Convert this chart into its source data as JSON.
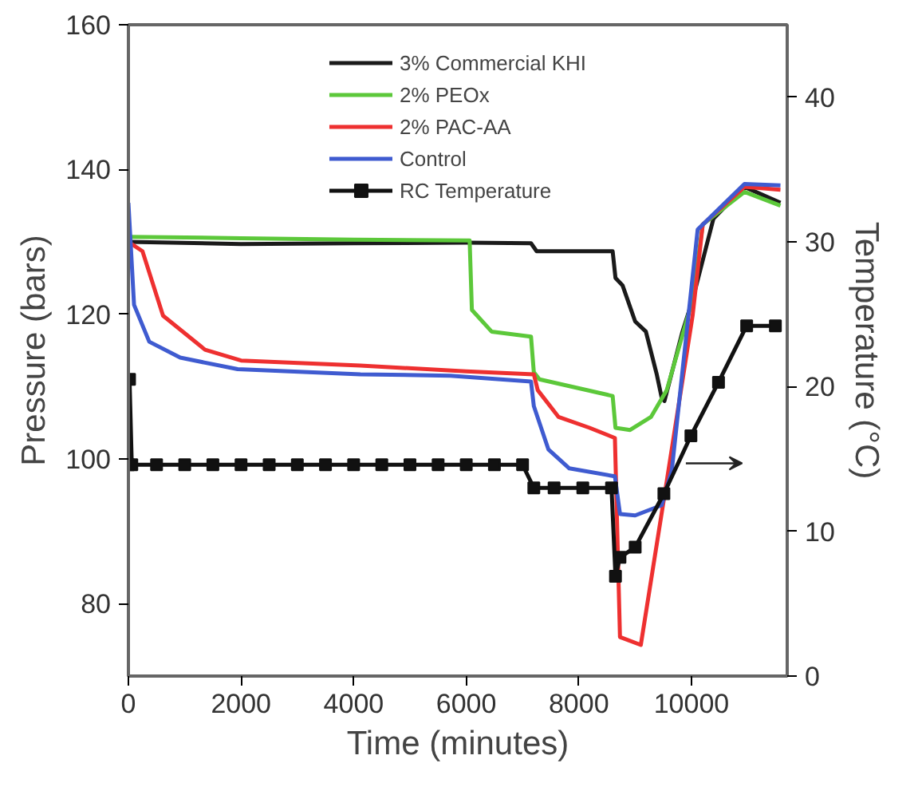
{
  "chart_data": {
    "type": "line",
    "xlabel": "Time (minutes)",
    "ylabel": "Pressure (bars)",
    "y2label": "Temperature (°C)",
    "xlim": [
      0,
      11700
    ],
    "ylim": [
      70,
      160
    ],
    "y2lim": [
      0,
      45
    ],
    "xticks": [
      0,
      2000,
      4000,
      6000,
      8000,
      10000
    ],
    "yticks": [
      80,
      100,
      120,
      140,
      160
    ],
    "y2ticks": [
      0,
      10,
      20,
      30,
      40
    ],
    "grid": false,
    "legend": "top",
    "marker": "none",
    "line_style": "solid",
    "series": [
      {
        "name": "3% Commercial KHI",
        "color": "#1a1a1a",
        "x": [
          0,
          2000,
          4000,
          6000,
          7150,
          7250,
          8600,
          8650,
          8775,
          9000,
          9190,
          9380,
          9470,
          9520,
          9840,
          10020,
          10390,
          10940,
          11580
        ],
        "values": [
          130,
          129.7,
          129.8,
          129.9,
          129.8,
          128.7,
          128.7,
          125,
          124,
          119,
          117.6,
          111.8,
          108.5,
          108,
          117.6,
          122,
          133.2,
          137.6,
          135.4
        ]
      },
      {
        "name": "2% PEOx",
        "color": "#5cc83a",
        "x": [
          0,
          2000,
          4000,
          6000,
          6060,
          6100,
          6450,
          7150,
          7200,
          7300,
          8600,
          8650,
          8910,
          9280,
          9560,
          10020,
          10200,
          10940,
          11580
        ],
        "values": [
          130.7,
          130.5,
          130.3,
          130.2,
          130.2,
          120.6,
          117.6,
          116.9,
          112,
          111,
          108.7,
          104.3,
          104,
          105.8,
          109.5,
          122,
          132.4,
          136.9,
          135
        ]
      },
      {
        "name": "2% PAC-AA",
        "color": "#ee3030",
        "x": [
          0,
          250,
          615,
          1360,
          2000,
          4120,
          6000,
          7200,
          7270,
          7640,
          8190,
          8640,
          8730,
          9100,
          9560,
          10020,
          10200,
          10940,
          11580
        ],
        "values": [
          130,
          128.7,
          119.8,
          115.1,
          113.6,
          112.9,
          112.1,
          111.7,
          109.5,
          105.8,
          104.3,
          102.9,
          75.4,
          74.3,
          96.9,
          119.8,
          132.4,
          137.6,
          137.2
        ]
      },
      {
        "name": "Control",
        "color": "#3f5bd0",
        "x": [
          0,
          100,
          370,
          920,
          1940,
          4120,
          5720,
          7150,
          7200,
          7460,
          7830,
          8640,
          8730,
          9000,
          9470,
          9650,
          10110,
          10940,
          11580
        ],
        "values": [
          135.4,
          121.3,
          116.2,
          114,
          112.4,
          111.7,
          111.5,
          110.7,
          107.3,
          101.3,
          98.7,
          97.6,
          92.4,
          92.2,
          93.6,
          98.4,
          131.7,
          138,
          137.8
        ]
      },
      {
        "name": "RC Temperature",
        "color": "#111111",
        "axis": "y2",
        "marker": "square",
        "x": [
          0,
          20,
          60,
          500,
          1000,
          1500,
          2000,
          2500,
          3000,
          3500,
          4000,
          4500,
          5000,
          5500,
          6000,
          6500,
          7000,
          7200,
          7560,
          8070,
          8580,
          8650,
          8730,
          9000,
          9510,
          9990,
          10480,
          10980,
          11490
        ],
        "values": [
          14.6,
          20.5,
          14.6,
          14.6,
          14.6,
          14.6,
          14.6,
          14.6,
          14.6,
          14.6,
          14.6,
          14.6,
          14.6,
          14.6,
          14.6,
          14.6,
          14.6,
          13,
          13,
          13,
          13,
          6.9,
          8.2,
          8.9,
          12.6,
          16.6,
          20.3,
          24.2,
          24.2
        ]
      }
    ]
  }
}
